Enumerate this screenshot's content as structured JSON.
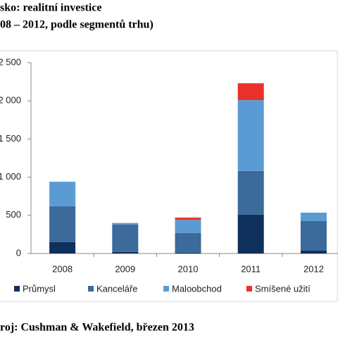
{
  "chart_data": {
    "type": "stacked-bar",
    "title": "sko: realitní investice",
    "subtitle": "08 – 2012, podle segmentů trhu)",
    "source": "roj: Cushman & Wakefield, březen 2013",
    "categories": [
      "2008",
      "2009",
      "2010",
      "2011",
      "2012"
    ],
    "series": [
      {
        "name": "Průmysl",
        "color": "#0f2f5c",
        "values": [
          150,
          20,
          10,
          510,
          40
        ]
      },
      {
        "name": "Kanceláře",
        "color": "#3b6a9b",
        "values": [
          470,
          360,
          260,
          570,
          385
        ]
      },
      {
        "name": "Maloobchod",
        "color": "#5b9bd3",
        "values": [
          320,
          20,
          170,
          930,
          110
        ]
      },
      {
        "name": "Smíšené užití",
        "color": "#e8312a",
        "values": [
          0,
          0,
          30,
          220,
          0
        ]
      }
    ],
    "ylim": [
      0,
      2500
    ],
    "yticks": [
      0,
      500,
      {
        "value": 1000,
        "label": "1 000"
      },
      {
        "value": 1500,
        "label": "1 500"
      },
      {
        "value": 2000,
        "label": "2 000"
      },
      {
        "value": 2500,
        "label": "2 500"
      }
    ],
    "grid": false
  }
}
